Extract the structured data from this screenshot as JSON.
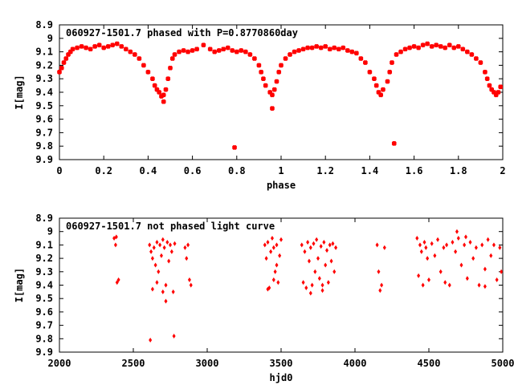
{
  "chart_data": [
    {
      "type": "scatter",
      "title": "060927-1501.7 phased with P=0.8770860day",
      "xlabel": "phase",
      "ylabel": "I[mag]",
      "xlim": [
        0,
        2
      ],
      "ylim": [
        9.9,
        8.9
      ],
      "y_inverted": true,
      "xticks": [
        "0",
        "0.2",
        "0.4",
        "0.6",
        "0.8",
        "1",
        "1.2",
        "1.4",
        "1.6",
        "1.8",
        "2"
      ],
      "yticks": [
        "8.9",
        "9",
        "9.1",
        "9.2",
        "9.3",
        "9.4",
        "9.5",
        "9.6",
        "9.7",
        "9.8",
        "9.9"
      ],
      "marker": "cross",
      "color": "#ff0000",
      "grid": false,
      "points": [
        [
          0.0,
          9.25
        ],
        [
          0.01,
          9.22
        ],
        [
          0.02,
          9.18
        ],
        [
          0.03,
          9.15
        ],
        [
          0.04,
          9.12
        ],
        [
          0.05,
          9.1
        ],
        [
          0.06,
          9.08
        ],
        [
          0.08,
          9.07
        ],
        [
          0.1,
          9.06
        ],
        [
          0.12,
          9.07
        ],
        [
          0.14,
          9.08
        ],
        [
          0.16,
          9.06
        ],
        [
          0.18,
          9.05
        ],
        [
          0.2,
          9.07
        ],
        [
          0.22,
          9.06
        ],
        [
          0.24,
          9.05
        ],
        [
          0.26,
          9.04
        ],
        [
          0.28,
          9.06
        ],
        [
          0.3,
          9.08
        ],
        [
          0.32,
          9.1
        ],
        [
          0.34,
          9.12
        ],
        [
          0.36,
          9.15
        ],
        [
          0.38,
          9.2
        ],
        [
          0.4,
          9.25
        ],
        [
          0.42,
          9.3
        ],
        [
          0.43,
          9.35
        ],
        [
          0.44,
          9.38
        ],
        [
          0.45,
          9.4
        ],
        [
          0.46,
          9.43
        ],
        [
          0.47,
          9.42
        ],
        [
          0.48,
          9.38
        ],
        [
          0.49,
          9.3
        ],
        [
          0.5,
          9.22
        ],
        [
          0.51,
          9.15
        ],
        [
          0.52,
          9.12
        ],
        [
          0.54,
          9.1
        ],
        [
          0.56,
          9.09
        ],
        [
          0.58,
          9.1
        ],
        [
          0.6,
          9.09
        ],
        [
          0.62,
          9.08
        ],
        [
          0.65,
          9.05
        ],
        [
          0.68,
          9.08
        ],
        [
          0.7,
          9.1
        ],
        [
          0.72,
          9.09
        ],
        [
          0.74,
          9.08
        ],
        [
          0.76,
          9.07
        ],
        [
          0.78,
          9.09
        ],
        [
          0.8,
          9.1
        ],
        [
          0.82,
          9.09
        ],
        [
          0.84,
          9.1
        ],
        [
          0.86,
          9.12
        ],
        [
          0.88,
          9.15
        ],
        [
          0.9,
          9.2
        ],
        [
          0.91,
          9.25
        ],
        [
          0.92,
          9.3
        ],
        [
          0.93,
          9.35
        ],
        [
          0.95,
          9.4
        ],
        [
          0.96,
          9.42
        ],
        [
          0.97,
          9.38
        ],
        [
          0.98,
          9.32
        ],
        [
          0.99,
          9.25
        ],
        [
          1.0,
          9.2
        ],
        [
          1.02,
          9.15
        ],
        [
          1.04,
          9.12
        ],
        [
          1.06,
          9.1
        ],
        [
          1.08,
          9.09
        ],
        [
          1.1,
          9.08
        ],
        [
          1.12,
          9.07
        ],
        [
          1.14,
          9.07
        ],
        [
          1.16,
          9.06
        ],
        [
          1.18,
          9.07
        ],
        [
          1.2,
          9.06
        ],
        [
          1.22,
          9.08
        ],
        [
          1.24,
          9.07
        ],
        [
          1.26,
          9.08
        ],
        [
          1.28,
          9.07
        ],
        [
          1.3,
          9.09
        ],
        [
          1.32,
          9.1
        ],
        [
          1.34,
          9.11
        ],
        [
          1.36,
          9.15
        ],
        [
          1.38,
          9.18
        ],
        [
          1.4,
          9.25
        ],
        [
          1.42,
          9.3
        ],
        [
          1.43,
          9.35
        ],
        [
          1.44,
          9.4
        ],
        [
          1.45,
          9.42
        ],
        [
          1.46,
          9.38
        ],
        [
          1.48,
          9.32
        ],
        [
          1.49,
          9.25
        ],
        [
          1.5,
          9.18
        ],
        [
          1.52,
          9.12
        ],
        [
          1.54,
          9.1
        ],
        [
          1.56,
          9.08
        ],
        [
          1.58,
          9.07
        ],
        [
          1.6,
          9.06
        ],
        [
          1.62,
          9.07
        ],
        [
          1.64,
          9.05
        ],
        [
          1.66,
          9.04
        ],
        [
          1.68,
          9.06
        ],
        [
          1.7,
          9.05
        ],
        [
          1.72,
          9.06
        ],
        [
          1.74,
          9.07
        ],
        [
          1.76,
          9.05
        ],
        [
          1.78,
          9.07
        ],
        [
          1.8,
          9.06
        ],
        [
          1.82,
          9.08
        ],
        [
          1.84,
          9.1
        ],
        [
          1.86,
          9.12
        ],
        [
          1.88,
          9.15
        ],
        [
          1.9,
          9.18
        ],
        [
          1.92,
          9.25
        ],
        [
          1.93,
          9.3
        ],
        [
          1.94,
          9.35
        ],
        [
          1.95,
          9.38
        ],
        [
          1.96,
          9.4
        ],
        [
          1.97,
          9.42
        ],
        [
          1.98,
          9.4
        ],
        [
          1.99,
          9.36
        ],
        [
          0.47,
          9.47
        ],
        [
          0.96,
          9.52
        ],
        [
          0.79,
          9.81
        ],
        [
          1.51,
          9.78
        ]
      ]
    },
    {
      "type": "scatter",
      "title": "060927-1501.7 not phased light curve",
      "xlabel": "hjd0",
      "ylabel": "I[mag]",
      "xlim": [
        2000,
        5000
      ],
      "ylim": [
        9.9,
        8.9
      ],
      "y_inverted": true,
      "xticks": [
        "2000",
        "2500",
        "3000",
        "3500",
        "4000",
        "4500",
        "5000"
      ],
      "yticks": [
        "8.9",
        "9",
        "9.1",
        "9.2",
        "9.3",
        "9.4",
        "9.5",
        "9.6",
        "9.7",
        "9.8",
        "9.9"
      ],
      "marker": "diamond",
      "color": "#ff0000",
      "grid": false,
      "points": [
        [
          2370,
          9.05
        ],
        [
          2380,
          9.1
        ],
        [
          2390,
          9.38
        ],
        [
          2400,
          9.36
        ],
        [
          2385,
          9.04
        ],
        [
          2610,
          9.1
        ],
        [
          2620,
          9.15
        ],
        [
          2630,
          9.2
        ],
        [
          2640,
          9.12
        ],
        [
          2650,
          9.25
        ],
        [
          2660,
          9.08
        ],
        [
          2670,
          9.3
        ],
        [
          2680,
          9.1
        ],
        [
          2690,
          9.18
        ],
        [
          2700,
          9.06
        ],
        [
          2710,
          9.12
        ],
        [
          2720,
          9.4
        ],
        [
          2730,
          9.08
        ],
        [
          2740,
          9.22
        ],
        [
          2750,
          9.1
        ],
        [
          2760,
          9.15
        ],
        [
          2770,
          9.45
        ],
        [
          2780,
          9.09
        ],
        [
          2630,
          9.43
        ],
        [
          2660,
          9.38
        ],
        [
          2700,
          9.45
        ],
        [
          2720,
          9.52
        ],
        [
          2615,
          9.81
        ],
        [
          2775,
          9.78
        ],
        [
          2850,
          9.12
        ],
        [
          2870,
          9.1
        ],
        [
          2880,
          9.36
        ],
        [
          2890,
          9.4
        ],
        [
          2860,
          9.2
        ],
        [
          3390,
          9.1
        ],
        [
          3400,
          9.2
        ],
        [
          3410,
          9.08
        ],
        [
          3420,
          9.42
        ],
        [
          3430,
          9.15
        ],
        [
          3440,
          9.05
        ],
        [
          3450,
          9.12
        ],
        [
          3460,
          9.3
        ],
        [
          3470,
          9.1
        ],
        [
          3480,
          9.38
        ],
        [
          3490,
          9.18
        ],
        [
          3500,
          9.06
        ],
        [
          3410,
          9.43
        ],
        [
          3450,
          9.36
        ],
        [
          3470,
          9.25
        ],
        [
          3640,
          9.1
        ],
        [
          3650,
          9.38
        ],
        [
          3660,
          9.15
        ],
        [
          3670,
          9.42
        ],
        [
          3680,
          9.08
        ],
        [
          3690,
          9.22
        ],
        [
          3700,
          9.12
        ],
        [
          3710,
          9.4
        ],
        [
          3720,
          9.09
        ],
        [
          3730,
          9.3
        ],
        [
          3740,
          9.06
        ],
        [
          3750,
          9.2
        ],
        [
          3760,
          9.35
        ],
        [
          3770,
          9.11
        ],
        [
          3780,
          9.4
        ],
        [
          3790,
          9.08
        ],
        [
          3800,
          9.25
        ],
        [
          3810,
          9.14
        ],
        [
          3820,
          9.38
        ],
        [
          3830,
          9.1
        ],
        [
          3840,
          9.22
        ],
        [
          3850,
          9.09
        ],
        [
          3860,
          9.3
        ],
        [
          3870,
          9.12
        ],
        [
          3700,
          9.46
        ],
        [
          3780,
          9.44
        ],
        [
          4150,
          9.1
        ],
        [
          4160,
          9.3
        ],
        [
          4170,
          9.44
        ],
        [
          4180,
          9.4
        ],
        [
          4200,
          9.12
        ],
        [
          4420,
          9.05
        ],
        [
          4430,
          9.33
        ],
        [
          4440,
          9.1
        ],
        [
          4450,
          9.15
        ],
        [
          4460,
          9.4
        ],
        [
          4470,
          9.08
        ],
        [
          4480,
          9.12
        ],
        [
          4490,
          9.2
        ],
        [
          4500,
          9.36
        ],
        [
          4520,
          9.09
        ],
        [
          4540,
          9.18
        ],
        [
          4560,
          9.06
        ],
        [
          4580,
          9.3
        ],
        [
          4600,
          9.12
        ],
        [
          4620,
          9.1
        ],
        [
          4640,
          9.4
        ],
        [
          4660,
          9.08
        ],
        [
          4680,
          9.15
        ],
        [
          4700,
          9.05
        ],
        [
          4720,
          9.25
        ],
        [
          4740,
          9.1
        ],
        [
          4760,
          9.35
        ],
        [
          4780,
          9.08
        ],
        [
          4800,
          9.2
        ],
        [
          4820,
          9.12
        ],
        [
          4840,
          9.4
        ],
        [
          4860,
          9.1
        ],
        [
          4880,
          9.28
        ],
        [
          4900,
          9.06
        ],
        [
          4920,
          9.18
        ],
        [
          4940,
          9.1
        ],
        [
          4960,
          9.36
        ],
        [
          4980,
          9.12
        ],
        [
          4990,
          9.3
        ],
        [
          4690,
          9.0
        ],
        [
          4750,
          9.04
        ],
        [
          4880,
          9.41
        ],
        [
          4610,
          9.38
        ]
      ]
    }
  ]
}
